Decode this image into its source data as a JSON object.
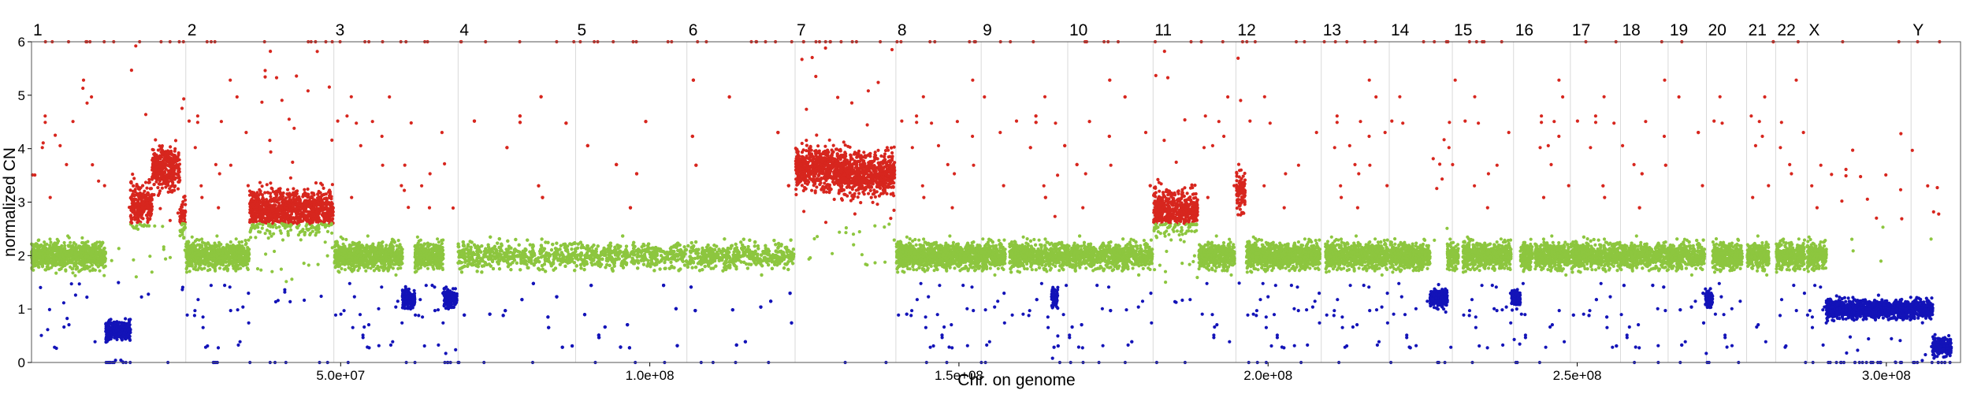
{
  "chart_data": {
    "type": "scatter",
    "xlabel": "Chr. on genome",
    "ylabel": "normalized CN",
    "xlim": [
      0,
      312000000
    ],
    "ylim": [
      0,
      6
    ],
    "grid": "vertical lines at chromosome starts",
    "colors": {
      "gain": "#d7261e",
      "normal": "#8dc63f",
      "loss": "#1313b8",
      "grid": "#d9d9d9",
      "frame": "#555555"
    },
    "x_ticks": [
      {
        "value": 50000000,
        "label": "5.0e+07"
      },
      {
        "value": 100000000,
        "label": "1.0e+08"
      },
      {
        "value": 150000000,
        "label": "1.5e+08"
      },
      {
        "value": 200000000,
        "label": "2.0e+08"
      },
      {
        "value": 250000000,
        "label": "2.5e+08"
      },
      {
        "value": 300000000,
        "label": "3.0e+08"
      }
    ],
    "y_ticks": [
      0,
      1,
      2,
      3,
      4,
      5,
      6
    ],
    "chromosomes": [
      {
        "label": "1",
        "start": 0
      },
      {
        "label": "2",
        "start": 24950000
      },
      {
        "label": "3",
        "start": 48900000
      },
      {
        "label": "4",
        "start": 69000000
      },
      {
        "label": "5",
        "start": 88000000
      },
      {
        "label": "6",
        "start": 106000000
      },
      {
        "label": "7",
        "start": 123500000
      },
      {
        "label": "8",
        "start": 139800000
      },
      {
        "label": "9",
        "start": 153600000
      },
      {
        "label": "10",
        "start": 167600000
      },
      {
        "label": "11",
        "start": 181400000
      },
      {
        "label": "12",
        "start": 194800000
      },
      {
        "label": "13",
        "start": 208600000
      },
      {
        "label": "14",
        "start": 219600000
      },
      {
        "label": "15",
        "start": 229800000
      },
      {
        "label": "16",
        "start": 239700000
      },
      {
        "label": "17",
        "start": 248900000
      },
      {
        "label": "18",
        "start": 257000000
      },
      {
        "label": "19",
        "start": 264700000
      },
      {
        "label": "20",
        "start": 270900000
      },
      {
        "label": "21",
        "start": 277400000
      },
      {
        "label": "22",
        "start": 282100000
      },
      {
        "label": "X",
        "start": 287200000
      },
      {
        "label": "Y",
        "start": 304000000
      }
    ],
    "segments": [
      {
        "start": 0,
        "end": 12000000,
        "cn": 2.0
      },
      {
        "start": 12000000,
        "end": 16000000,
        "cn": 0.6
      },
      {
        "start": 16000000,
        "end": 19500000,
        "cn": 2.95
      },
      {
        "start": 19500000,
        "end": 24000000,
        "cn": 3.65
      },
      {
        "start": 24000000,
        "end": 24900000,
        "cn": 2.7
      },
      {
        "start": 25000000,
        "end": 35200000,
        "cn": 2.0
      },
      {
        "start": 35300000,
        "end": 48800000,
        "cn": 2.85
      },
      {
        "start": 49000000,
        "end": 60000000,
        "cn": 2.0
      },
      {
        "start": 60000000,
        "end": 62000000,
        "cn": 1.2
      },
      {
        "start": 62000000,
        "end": 66600000,
        "cn": 2.0
      },
      {
        "start": 66700000,
        "end": 68800000,
        "cn": 1.2
      },
      {
        "start": 69000000,
        "end": 123300000,
        "cn": 2.0
      },
      {
        "start": 123600000,
        "end": 130500000,
        "cn": 3.65
      },
      {
        "start": 130500000,
        "end": 139600000,
        "cn": 3.55
      },
      {
        "start": 139900000,
        "end": 157500000,
        "cn": 2.0
      },
      {
        "start": 158200000,
        "end": 181300000,
        "cn": 2.0
      },
      {
        "start": 165000000,
        "end": 166000000,
        "cn": 1.2
      },
      {
        "start": 181500000,
        "end": 188600000,
        "cn": 2.85
      },
      {
        "start": 188800000,
        "end": 194600000,
        "cn": 2.0
      },
      {
        "start": 194900000,
        "end": 196300000,
        "cn": 3.2
      },
      {
        "start": 196500000,
        "end": 208400000,
        "cn": 2.0
      },
      {
        "start": 209300000,
        "end": 219400000,
        "cn": 2.0
      },
      {
        "start": 219700000,
        "end": 226200000,
        "cn": 2.0
      },
      {
        "start": 226200000,
        "end": 229000000,
        "cn": 1.2
      },
      {
        "start": 229000000,
        "end": 230800000,
        "cn": 2.0
      },
      {
        "start": 231500000,
        "end": 239300000,
        "cn": 2.0
      },
      {
        "start": 239400000,
        "end": 240800000,
        "cn": 1.2
      },
      {
        "start": 240800000,
        "end": 242800000,
        "cn": 2.0
      },
      {
        "start": 243200000,
        "end": 248700000,
        "cn": 2.0
      },
      {
        "start": 249000000,
        "end": 270600000,
        "cn": 2.0
      },
      {
        "start": 270700000,
        "end": 271900000,
        "cn": 1.2
      },
      {
        "start": 271900000,
        "end": 276700000,
        "cn": 2.0
      },
      {
        "start": 277500000,
        "end": 281000000,
        "cn": 2.0
      },
      {
        "start": 282200000,
        "end": 286800000,
        "cn": 2.0
      },
      {
        "start": 287200000,
        "end": 290300000,
        "cn": 2.0
      },
      {
        "start": 290300000,
        "end": 307500000,
        "cn": 1.0
      },
      {
        "start": 307500000,
        "end": 310500000,
        "cn": 0.3
      }
    ]
  }
}
